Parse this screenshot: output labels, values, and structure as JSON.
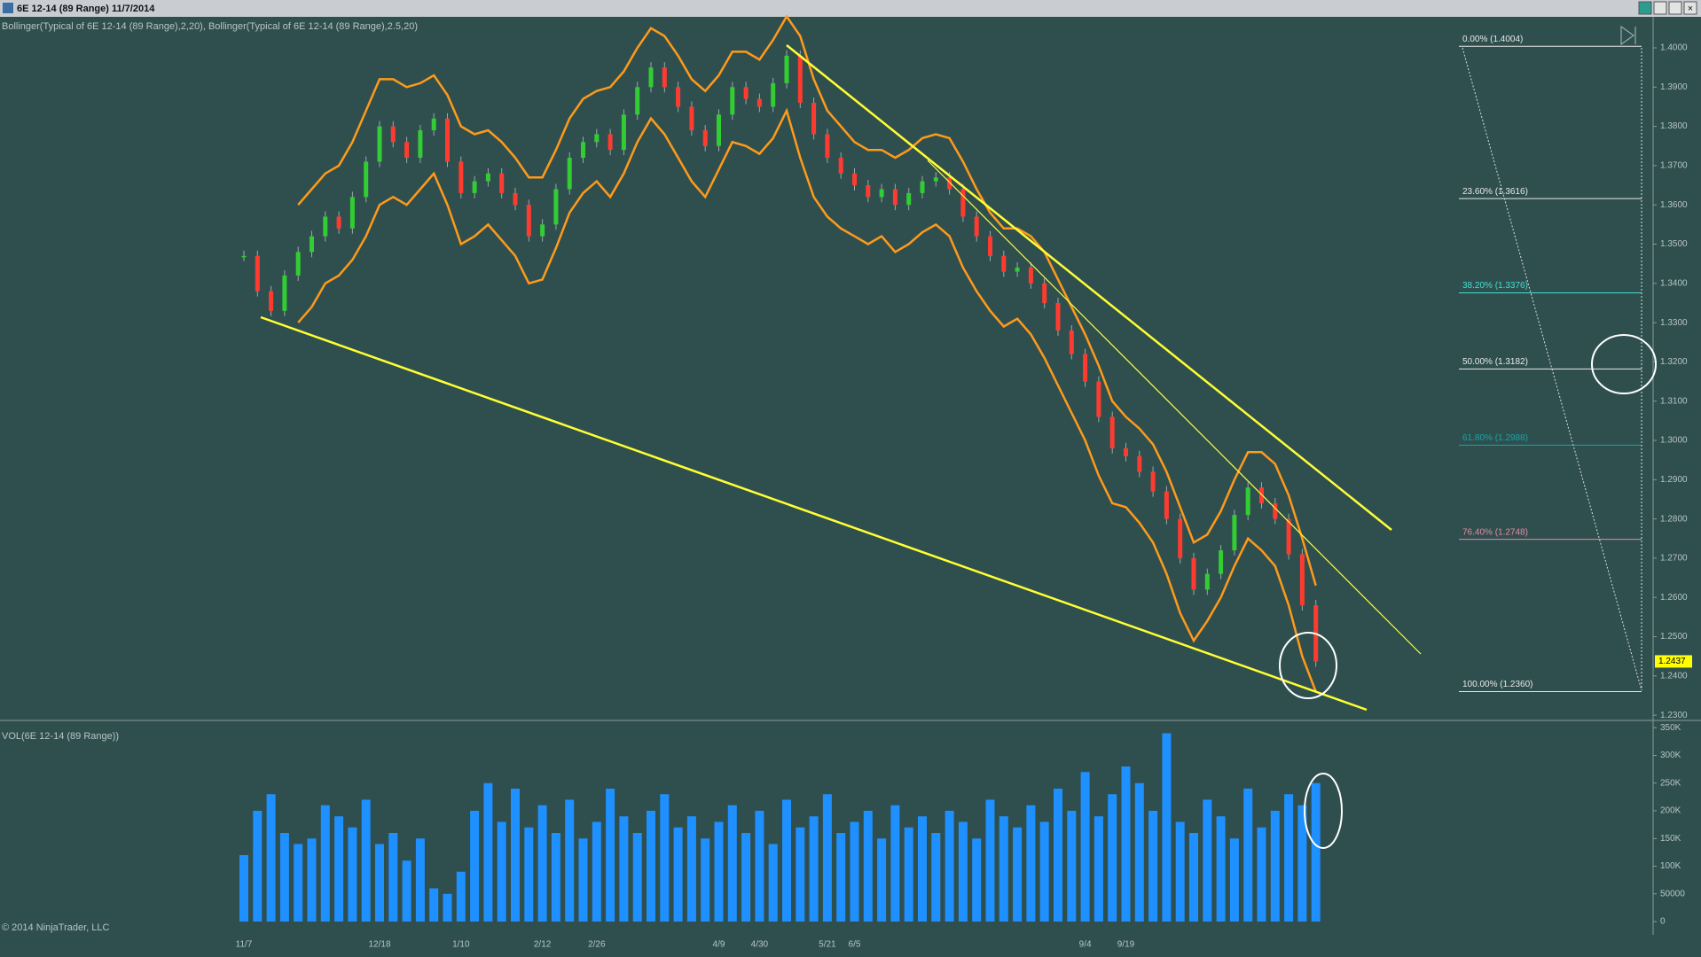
{
  "window_title": "6E 12-14 (89 Range)  11/7/2014",
  "copyright": "© 2014 NinjaTrader, LLC",
  "chart_data": [
    {
      "type": "candlestick",
      "label": "Bollinger(Typical of 6E 12-14 (89 Range),2,20), Bollinger(Typical of 6E 12-14 (89 Range),2.5,20)",
      "categories": [
        "11/7",
        null,
        null,
        null,
        null,
        null,
        null,
        null,
        null,
        null,
        "12/18",
        null,
        null,
        null,
        null,
        null,
        "1/10",
        null,
        null,
        null,
        null,
        null,
        "2/12",
        null,
        null,
        null,
        "2/26",
        null,
        null,
        null,
        null,
        null,
        null,
        null,
        null,
        "4/9",
        null,
        null,
        "4/30",
        null,
        null,
        null,
        null,
        "5/21",
        null,
        "6/5",
        null,
        null,
        null,
        null,
        null,
        null,
        null,
        null,
        null,
        null,
        null,
        null,
        null,
        null,
        null,
        null,
        "9/4",
        null,
        null,
        "9/19",
        null,
        null,
        null,
        null,
        null,
        null,
        null,
        null,
        null,
        null,
        null,
        null,
        null,
        null
      ],
      "closes": [
        1.347,
        1.338,
        1.333,
        1.342,
        1.348,
        1.352,
        1.357,
        1.354,
        1.362,
        1.371,
        1.38,
        1.376,
        1.372,
        1.379,
        1.382,
        1.371,
        1.363,
        1.366,
        1.368,
        1.363,
        1.36,
        1.352,
        1.355,
        1.364,
        1.372,
        1.376,
        1.378,
        1.374,
        1.383,
        1.39,
        1.395,
        1.39,
        1.385,
        1.379,
        1.375,
        1.383,
        1.39,
        1.387,
        1.385,
        1.391,
        1.398,
        1.386,
        1.378,
        1.372,
        1.368,
        1.365,
        1.362,
        1.364,
        1.36,
        1.363,
        1.366,
        1.367,
        1.364,
        1.357,
        1.352,
        1.347,
        1.343,
        1.344,
        1.34,
        1.335,
        1.328,
        1.322,
        1.315,
        1.306,
        1.298,
        1.296,
        1.292,
        1.287,
        1.28,
        1.27,
        1.262,
        1.266,
        1.272,
        1.281,
        1.288,
        1.284,
        1.28,
        1.271,
        1.258,
        1.2437
      ],
      "upper_band": [
        null,
        null,
        null,
        null,
        1.36,
        1.364,
        1.368,
        1.37,
        1.376,
        1.384,
        1.392,
        1.392,
        1.39,
        1.391,
        1.393,
        1.388,
        1.38,
        1.378,
        1.379,
        1.376,
        1.372,
        1.367,
        1.367,
        1.374,
        1.382,
        1.387,
        1.389,
        1.39,
        1.394,
        1.4,
        1.405,
        1.403,
        1.398,
        1.392,
        1.389,
        1.393,
        1.399,
        1.399,
        1.397,
        1.402,
        1.408,
        1.403,
        1.392,
        1.384,
        1.38,
        1.376,
        1.374,
        1.374,
        1.372,
        1.374,
        1.377,
        1.378,
        1.377,
        1.371,
        1.364,
        1.358,
        1.354,
        1.354,
        1.352,
        1.348,
        1.341,
        1.334,
        1.327,
        1.319,
        1.31,
        1.306,
        1.303,
        1.299,
        1.292,
        1.283,
        1.274,
        1.276,
        1.282,
        1.29,
        1.297,
        1.297,
        1.294,
        1.286,
        1.275,
        1.263
      ],
      "lower_band": [
        null,
        null,
        null,
        null,
        1.33,
        1.334,
        1.34,
        1.342,
        1.346,
        1.352,
        1.36,
        1.362,
        1.36,
        1.364,
        1.368,
        1.36,
        1.35,
        1.352,
        1.355,
        1.351,
        1.347,
        1.34,
        1.341,
        1.349,
        1.358,
        1.363,
        1.366,
        1.362,
        1.368,
        1.376,
        1.382,
        1.378,
        1.372,
        1.366,
        1.362,
        1.369,
        1.376,
        1.375,
        1.373,
        1.377,
        1.384,
        1.372,
        1.362,
        1.357,
        1.354,
        1.352,
        1.35,
        1.352,
        1.348,
        1.35,
        1.353,
        1.355,
        1.352,
        1.344,
        1.338,
        1.333,
        1.329,
        1.331,
        1.327,
        1.321,
        1.314,
        1.307,
        1.3,
        1.291,
        1.284,
        1.283,
        1.279,
        1.274,
        1.266,
        1.256,
        1.249,
        1.254,
        1.26,
        1.268,
        1.275,
        1.272,
        1.268,
        1.258,
        1.245,
        1.236
      ],
      "up_color": "#32cd32",
      "down_color": "#ff3b30",
      "band_color": "#ff9a1a",
      "ylim": [
        1.2289,
        1.4079
      ],
      "yticks": [
        {
          "value": 1.23,
          "label": "1.2300"
        },
        {
          "value": 1.24,
          "label": "1.2400"
        },
        {
          "value": 1.25,
          "label": "1.2500"
        },
        {
          "value": 1.26,
          "label": "1.2600"
        },
        {
          "value": 1.27,
          "label": "1.2700"
        },
        {
          "value": 1.28,
          "label": "1.2800"
        },
        {
          "value": 1.29,
          "label": "1.2900"
        },
        {
          "value": 1.3,
          "label": "1.3000"
        },
        {
          "value": 1.31,
          "label": "1.3100"
        },
        {
          "value": 1.32,
          "label": "1.3200"
        },
        {
          "value": 1.33,
          "label": "1.3300"
        },
        {
          "value": 1.34,
          "label": "1.3400"
        },
        {
          "value": 1.35,
          "label": "1.3500"
        },
        {
          "value": 1.36,
          "label": "1.3600"
        },
        {
          "value": 1.37,
          "label": "1.3700"
        },
        {
          "value": 1.38,
          "label": "1.3800"
        },
        {
          "value": 1.39,
          "label": "1.3900"
        },
        {
          "value": 1.4,
          "label": "1.4000"
        }
      ],
      "last_price": 1.2437,
      "fib_levels": [
        {
          "label": "0.00% (1.4004)",
          "value": 1.4004,
          "color": "#e8e8e8"
        },
        {
          "label": "23.60% (1.3616)",
          "value": 1.3616,
          "color": "#e8e8e8"
        },
        {
          "label": "38.20% (1.3376)",
          "value": 1.3376,
          "color": "#40e0d0"
        },
        {
          "label": "50.00% (1.3182)",
          "value": 1.3182,
          "color": "#e8e8e8"
        },
        {
          "label": "61.80% (1.2988)",
          "value": 1.2988,
          "color": "#1aa3a3"
        },
        {
          "label": "76.40% (1.2748)",
          "value": 1.2748,
          "color": "#e88aa0"
        },
        {
          "label": "100.00% (1.2360)",
          "value": 1.236,
          "color": "#e8e8e8"
        }
      ]
    },
    {
      "type": "bar",
      "label": "VOL(6E 12-14 (89 Range))",
      "values": [
        120000,
        200000,
        230000,
        160000,
        140000,
        150000,
        210000,
        190000,
        170000,
        220000,
        140000,
        160000,
        110000,
        150000,
        60000,
        50000,
        90000,
        200000,
        250000,
        180000,
        240000,
        170000,
        210000,
        160000,
        220000,
        150000,
        180000,
        240000,
        190000,
        160000,
        200000,
        230000,
        170000,
        190000,
        150000,
        180000,
        210000,
        160000,
        200000,
        140000,
        220000,
        170000,
        190000,
        230000,
        160000,
        180000,
        200000,
        150000,
        210000,
        170000,
        190000,
        160000,
        200000,
        180000,
        150000,
        220000,
        190000,
        170000,
        210000,
        180000,
        240000,
        200000,
        270000,
        190000,
        230000,
        280000,
        250000,
        200000,
        340000,
        180000,
        160000,
        220000,
        190000,
        150000,
        240000,
        170000,
        200000,
        230000,
        210000,
        250000
      ],
      "color": "#1e90ff",
      "ylim": [
        -24000,
        360000
      ],
      "yticks": [
        0,
        50000,
        {
          "value": 100000,
          "label": "100K"
        },
        {
          "value": 150000,
          "label": "150K"
        },
        {
          "value": 200000,
          "label": "200K"
        },
        {
          "value": 250000,
          "label": "250K"
        },
        {
          "value": 300000,
          "label": "300K"
        },
        {
          "value": 350000,
          "label": "350K"
        }
      ]
    }
  ]
}
